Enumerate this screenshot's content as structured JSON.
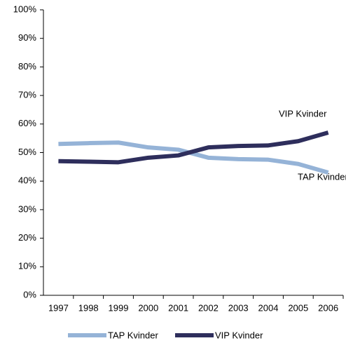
{
  "chart_data": {
    "type": "line",
    "categories": [
      "1997",
      "1998",
      "1999",
      "2000",
      "2001",
      "2002",
      "2003",
      "2004",
      "2005",
      "2006"
    ],
    "series": [
      {
        "name": "TAP Kvinder",
        "color": "#95b3d7",
        "values": [
          53,
          53.3,
          53.5,
          51.8,
          51,
          48.2,
          47.7,
          47.5,
          46,
          43
        ]
      },
      {
        "name": "VIP Kvinder",
        "color": "#2e2e5c",
        "values": [
          47,
          46.8,
          46.6,
          48.2,
          49,
          51.8,
          52.3,
          52.5,
          54,
          57
        ]
      }
    ],
    "annotations": [
      "VIP Kvinder",
      "TAP Kvinder"
    ],
    "ylim": [
      0,
      100
    ],
    "yticks": [
      {
        "value": 0,
        "label": "0%"
      },
      {
        "value": 10,
        "label": "10%"
      },
      {
        "value": 20,
        "label": "20%"
      },
      {
        "value": 30,
        "label": "30%"
      },
      {
        "value": 40,
        "label": "40%"
      },
      {
        "value": 50,
        "label": "50%"
      },
      {
        "value": 60,
        "label": "60%"
      },
      {
        "value": 70,
        "label": "70%"
      },
      {
        "value": 80,
        "label": "80%"
      },
      {
        "value": 90,
        "label": "90%"
      },
      {
        "value": 100,
        "label": "100%"
      }
    ],
    "grid": false,
    "legend": "bottom"
  }
}
